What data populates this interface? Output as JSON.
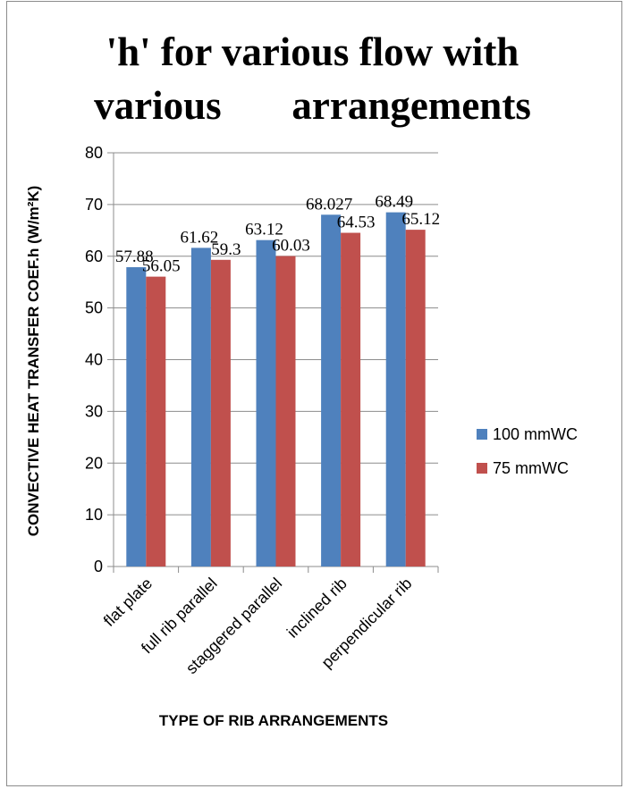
{
  "chart_data": {
    "type": "bar",
    "title_lines": [
      "'h' for various flow with",
      "various       arrangements"
    ],
    "categories": [
      "flat plate",
      "full rib parallel",
      "staggered parallel",
      "inclined rib",
      "perpendicular rib"
    ],
    "series": [
      {
        "name": "100 mmWC",
        "color": "#4f81bd",
        "values": [
          57.88,
          61.62,
          63.12,
          68.027,
          68.49
        ],
        "labels": [
          "57.88",
          "61.62",
          "63.12",
          "68.027",
          "68.49"
        ]
      },
      {
        "name": "75 mmWC",
        "color": "#c0504d",
        "values": [
          56.05,
          59.3,
          60.03,
          64.53,
          65.12
        ],
        "labels": [
          "56.05",
          "59.3",
          "60.03",
          "64.53",
          "65.12"
        ]
      }
    ],
    "xlabel": "TYPE  OF RIB ARRANGEMENTS",
    "ylabel": "CONVECTIVE  HEAT  TRANSFER COEF.h (W/m²K)",
    "ylim": [
      0,
      80
    ],
    "yticks": [
      0,
      10,
      20,
      30,
      40,
      50,
      60,
      70,
      80
    ],
    "grid": true,
    "legend_position": "right"
  }
}
